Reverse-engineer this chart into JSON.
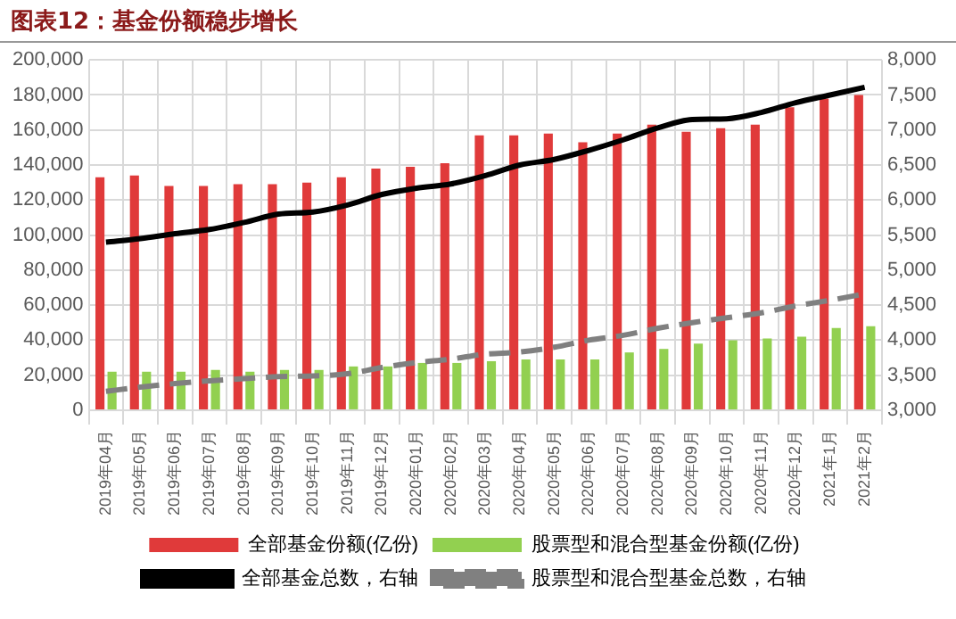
{
  "chart_data": {
    "type": "bar",
    "title": "图表12：基金份额稳步增长",
    "categories": [
      "2019年04月",
      "2019年05月",
      "2019年06月",
      "2019年07月",
      "2019年08月",
      "2019年09月",
      "2019年10月",
      "2019年11月",
      "2019年12月",
      "2020年01月",
      "2020年02月",
      "2020年03月",
      "2020年04月",
      "2020年05月",
      "2020年06月",
      "2020年07月",
      "2020年08月",
      "2020年09月",
      "2020年10月",
      "2020年11月",
      "2020年12月",
      "2021年1月",
      "2021年2月"
    ],
    "series": [
      {
        "name": "全部基金份额(亿份)",
        "color": "#e03a3a",
        "values": [
          133000,
          134000,
          128000,
          128000,
          129000,
          129000,
          130000,
          133000,
          138000,
          139000,
          141000,
          157000,
          157000,
          158000,
          153000,
          158000,
          163000,
          159000,
          161000,
          163000,
          173000,
          178000,
          180000
        ]
      },
      {
        "name": "股票型和混合型基金份额(亿份)",
        "color": "#92d050",
        "values": [
          22000,
          22000,
          22000,
          23000,
          22000,
          23000,
          23000,
          25000,
          25000,
          27000,
          27000,
          28000,
          29000,
          29000,
          29000,
          33000,
          35000,
          38000,
          40000,
          41000,
          42000,
          47000,
          48000
        ]
      },
      {
        "name": "全部基金总数，右轴",
        "type": "line",
        "axis": "y2",
        "color": "#000000",
        "line_style": "solid",
        "values": [
          5400,
          5450,
          5520,
          5580,
          5680,
          5800,
          5830,
          5930,
          6080,
          6170,
          6230,
          6350,
          6500,
          6580,
          6710,
          6860,
          7030,
          7150,
          7160,
          7250,
          7390,
          7500,
          7610
        ]
      },
      {
        "name": "股票型和混合型基金总数，右轴",
        "type": "line",
        "axis": "y2",
        "color": "#808080",
        "line_style": "dashed",
        "values": [
          3270,
          3330,
          3380,
          3420,
          3450,
          3480,
          3490,
          3520,
          3610,
          3680,
          3730,
          3800,
          3830,
          3900,
          4000,
          4070,
          4170,
          4250,
          4320,
          4390,
          4490,
          4570,
          4660
        ]
      }
    ],
    "ylim": [
      0,
      200000
    ],
    "yticks": [
      0,
      {
        "value": 20000,
        "label": "20,000"
      },
      {
        "value": 40000,
        "label": "40,000"
      },
      {
        "value": 60000,
        "label": "60,000"
      },
      {
        "value": 80000,
        "label": "80,000"
      },
      {
        "value": 100000,
        "label": "100,000"
      },
      {
        "value": 120000,
        "label": "120,000"
      },
      {
        "value": 140000,
        "label": "140,000"
      },
      {
        "value": 160000,
        "label": "160,000"
      },
      {
        "value": 180000,
        "label": "180,000"
      },
      {
        "value": 200000,
        "label": "200,000"
      }
    ],
    "y2lim": [
      3000,
      8000
    ],
    "y2ticks": [
      {
        "value": 3000,
        "label": "3,000"
      },
      {
        "value": 3500,
        "label": "3,500"
      },
      {
        "value": 4000,
        "label": "4,000"
      },
      {
        "value": 4500,
        "label": "4,500"
      },
      {
        "value": 5000,
        "label": "5,000"
      },
      {
        "value": 5500,
        "label": "5,500"
      },
      {
        "value": 6000,
        "label": "6,000"
      },
      {
        "value": 6500,
        "label": "6,500"
      },
      {
        "value": 7000,
        "label": "7,000"
      },
      {
        "value": 7500,
        "label": "7,500"
      },
      {
        "value": 8000,
        "label": "8,000"
      }
    ],
    "grid": true,
    "legend": "bottom",
    "marker": "none"
  }
}
